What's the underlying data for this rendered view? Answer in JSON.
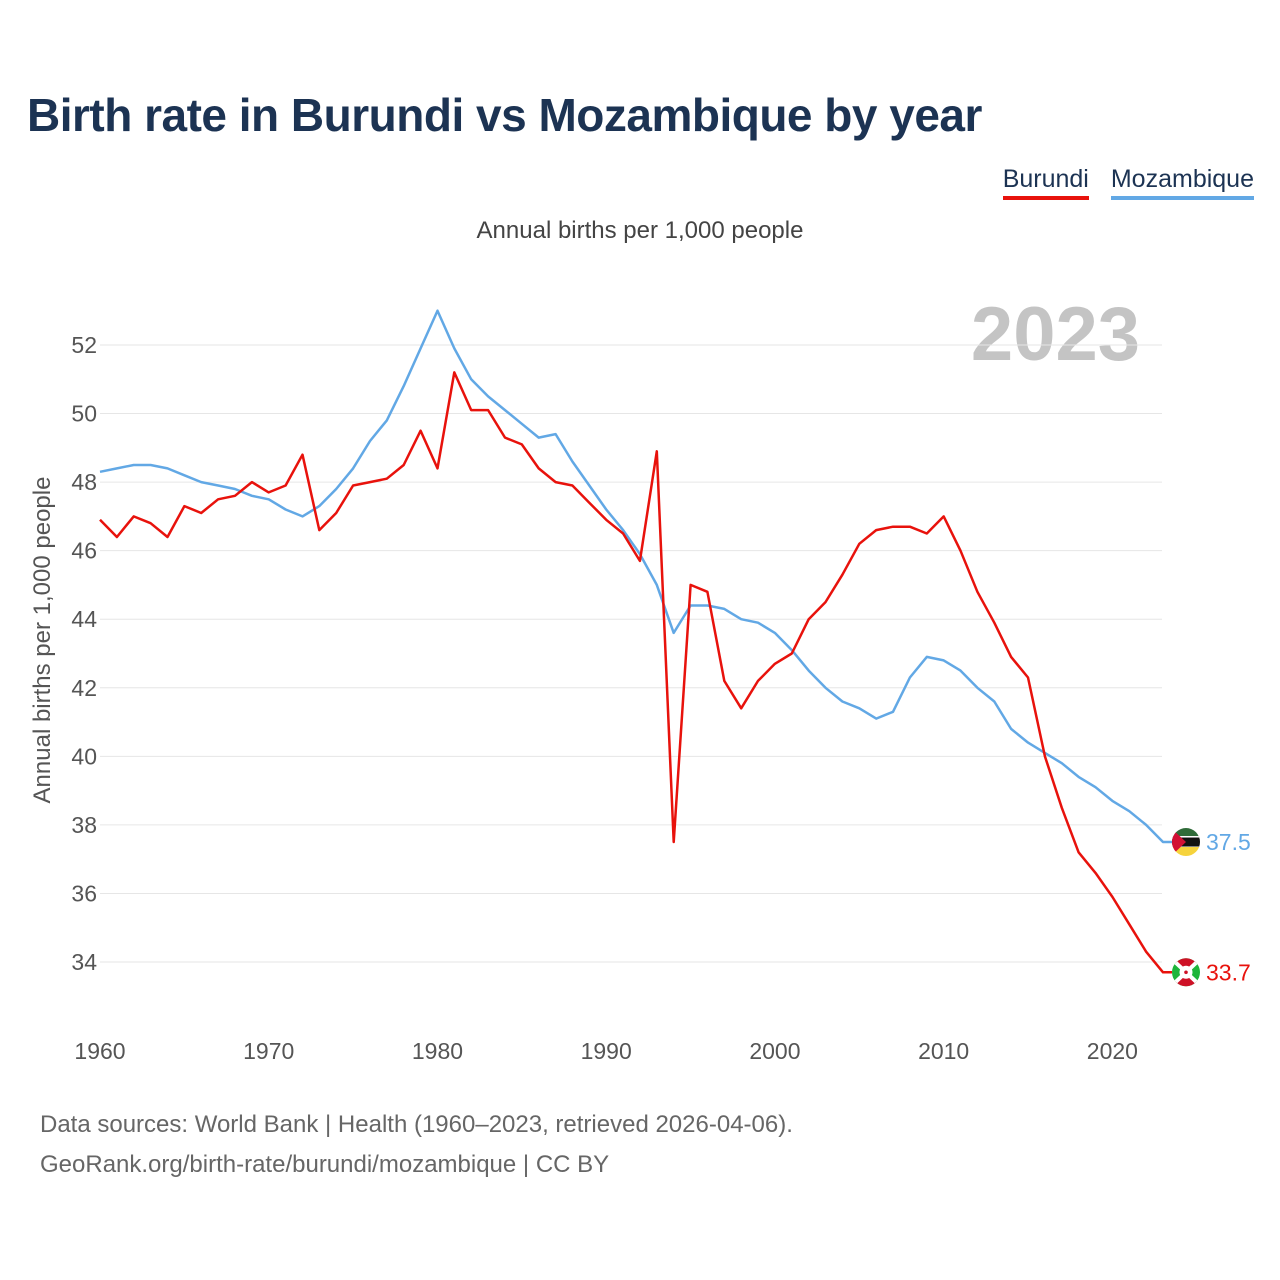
{
  "title": "Birth rate in Burundi vs Mozambique by year",
  "legend": {
    "items": [
      {
        "label": "Burundi",
        "color": "#e8120c"
      },
      {
        "label": "Mozambique",
        "color": "#62a8e5"
      }
    ]
  },
  "subtitle": "Annual births per 1,000 people",
  "source": {
    "line1": "Data sources: World Bank | Health (1960–2023, retrieved 2026-04-06).",
    "line2": "GeoRank.org/birth-rate/burundi/mozambique | CC BY"
  },
  "chart_data": {
    "type": "line",
    "title": "Birth rate in Burundi vs Mozambique by year",
    "ylabel": "Annual births per 1,000 people",
    "xlabel": "",
    "year_watermark": "2023",
    "xlim": [
      1960,
      2023
    ],
    "ylim": [
      32.5,
      53.5
    ],
    "x_ticks": [
      1960,
      1970,
      1980,
      1990,
      2000,
      2010,
      2020
    ],
    "y_ticks": [
      34,
      36,
      38,
      40,
      42,
      44,
      46,
      48,
      50,
      52
    ],
    "grid": true,
    "x": [
      1960,
      1961,
      1962,
      1963,
      1964,
      1965,
      1966,
      1967,
      1968,
      1969,
      1970,
      1971,
      1972,
      1973,
      1974,
      1975,
      1976,
      1977,
      1978,
      1979,
      1980,
      1981,
      1982,
      1983,
      1984,
      1985,
      1986,
      1987,
      1988,
      1989,
      1990,
      1991,
      1992,
      1993,
      1994,
      1995,
      1996,
      1997,
      1998,
      1999,
      2000,
      2001,
      2002,
      2003,
      2004,
      2005,
      2006,
      2007,
      2008,
      2009,
      2010,
      2011,
      2012,
      2013,
      2014,
      2015,
      2016,
      2017,
      2018,
      2019,
      2020,
      2021,
      2022,
      2023
    ],
    "series": [
      {
        "name": "Burundi",
        "color": "#e8120c",
        "end_label": "33.7",
        "values": [
          46.9,
          46.4,
          47.0,
          46.8,
          46.4,
          47.3,
          47.1,
          47.5,
          47.6,
          48.0,
          47.7,
          47.9,
          48.8,
          46.6,
          47.1,
          47.9,
          48.0,
          48.1,
          48.5,
          49.5,
          48.4,
          51.2,
          50.1,
          50.1,
          49.3,
          49.1,
          48.4,
          48.0,
          47.9,
          47.4,
          46.9,
          46.5,
          45.7,
          48.9,
          37.5,
          45.0,
          44.8,
          42.2,
          41.4,
          42.2,
          42.7,
          43.0,
          44.0,
          44.5,
          45.3,
          46.2,
          46.6,
          46.7,
          46.7,
          46.5,
          47.0,
          46.0,
          44.8,
          43.9,
          42.9,
          42.3,
          40.0,
          38.5,
          37.2,
          36.6,
          35.9,
          35.1,
          34.3,
          33.7
        ]
      },
      {
        "name": "Mozambique",
        "color": "#62a8e5",
        "end_label": "37.5",
        "values": [
          48.3,
          48.4,
          48.5,
          48.5,
          48.4,
          48.2,
          48.0,
          47.9,
          47.8,
          47.6,
          47.5,
          47.2,
          47.0,
          47.3,
          47.8,
          48.4,
          49.2,
          49.8,
          50.8,
          51.9,
          53.0,
          51.9,
          51.0,
          50.5,
          50.1,
          49.7,
          49.3,
          49.4,
          48.6,
          47.9,
          47.2,
          46.6,
          45.9,
          45.0,
          43.6,
          44.4,
          44.4,
          44.3,
          44.0,
          43.9,
          43.6,
          43.1,
          42.5,
          42.0,
          41.6,
          41.4,
          41.1,
          41.3,
          42.3,
          42.9,
          42.8,
          42.5,
          42.0,
          41.6,
          40.8,
          40.4,
          40.1,
          39.8,
          39.4,
          39.1,
          38.7,
          38.4,
          38.0,
          37.5
        ]
      }
    ]
  }
}
